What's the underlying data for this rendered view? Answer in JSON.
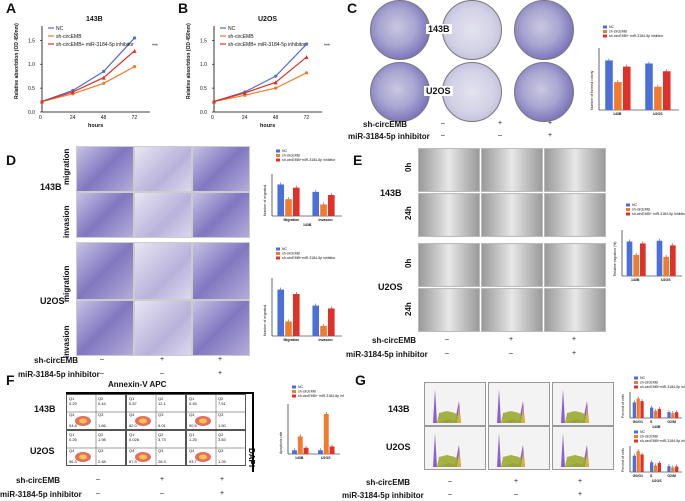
{
  "panel_labels": [
    "A",
    "B",
    "C",
    "D",
    "E",
    "F",
    "G"
  ],
  "chart_data": [
    {
      "type": "line",
      "panel": "A",
      "title": "143B",
      "xlabel": "hours",
      "ylabel": "Relative absorbtion (OD 450nm)",
      "x": [
        0,
        24,
        48,
        72
      ],
      "ylim": [
        0,
        1.8
      ],
      "yticks": [
        0.0,
        0.5,
        1.0,
        1.5
      ],
      "series": [
        {
          "name": "NC",
          "color": "#4a6fd8",
          "values": [
            0.22,
            0.45,
            0.85,
            1.55
          ]
        },
        {
          "name": "sh-circEMB",
          "color": "#f07b2c",
          "values": [
            0.22,
            0.38,
            0.6,
            0.95
          ]
        },
        {
          "name": "sh-circEMB+ miR-3184-5p inhibitor",
          "color": "#e0302a",
          "values": [
            0.22,
            0.42,
            0.72,
            1.28
          ]
        }
      ],
      "annotations": [
        "***",
        "**"
      ]
    },
    {
      "type": "line",
      "panel": "B",
      "title": "U2OS",
      "xlabel": "hours",
      "ylabel": "Relative absorbtion (OD 450nm)",
      "x": [
        0,
        24,
        48,
        72
      ],
      "ylim": [
        0,
        1.8
      ],
      "yticks": [
        0.0,
        0.5,
        1.0,
        1.5
      ],
      "series": [
        {
          "name": "NC",
          "color": "#4a6fd8",
          "values": [
            0.22,
            0.42,
            0.75,
            1.42
          ]
        },
        {
          "name": "sh-circEMB",
          "color": "#f07b2c",
          "values": [
            0.22,
            0.35,
            0.5,
            0.82
          ]
        },
        {
          "name": "sh-circEMB+ miR-3184-5p inhibitor",
          "color": "#e0302a",
          "values": [
            0.22,
            0.4,
            0.62,
            1.15
          ]
        }
      ],
      "annotations": [
        "***",
        "**"
      ]
    },
    {
      "type": "bar",
      "panel": "C",
      "ylabel": "Number of formed colony",
      "categories": [
        "143B",
        "U2OS"
      ],
      "ylim": [
        0,
        400
      ],
      "legend": [
        "NC",
        "sh-circEMB",
        "sh-circEMB+ miR-3184-5p inhibitor"
      ],
      "series": [
        {
          "name": "NC",
          "values": [
            320,
            300
          ]
        },
        {
          "name": "sh-circEMB",
          "values": [
            180,
            150
          ]
        },
        {
          "name": "inhibitor",
          "values": [
            280,
            250
          ]
        }
      ]
    },
    {
      "type": "bar",
      "panel": "D-143B",
      "ylabel": "Number of migrated",
      "categories": [
        "Migration",
        "Invasion"
      ],
      "ylim": [
        0,
        400
      ],
      "legend": [
        "NC",
        "sh-circEMB",
        "sh-circEMB+miR-3184-5p inhibitor"
      ],
      "caption": "143B",
      "series": [
        {
          "name": "NC",
          "values": [
            300,
            230
          ]
        },
        {
          "name": "sh-circEMB",
          "values": [
            160,
            110
          ]
        },
        {
          "name": "inhibitor",
          "values": [
            270,
            200
          ]
        }
      ]
    },
    {
      "type": "bar",
      "panel": "D-U2OS",
      "ylabel": "Number of migrated",
      "categories": [
        "Migration",
        "Invasion"
      ],
      "ylim": [
        0,
        400
      ],
      "legend": [
        "NC",
        "sh-circEMB",
        "sh-circEMB+miR-3184-5p inhibitor"
      ],
      "series": [
        {
          "name": "NC",
          "values": [
            320,
            210
          ]
        },
        {
          "name": "sh-circEMB",
          "values": [
            100,
            70
          ]
        },
        {
          "name": "inhibitor",
          "values": [
            290,
            190
          ]
        }
      ]
    },
    {
      "type": "bar",
      "panel": "E",
      "ylabel": "Relative migration (%)",
      "categories": [
        "143B",
        "U2OS"
      ],
      "ylim": [
        0,
        1.2
      ],
      "legend": [
        "NC",
        "sh-circEMB",
        "sh-circEMB+ miR-3184-5p inhibitor"
      ],
      "series": [
        {
          "name": "NC",
          "values": [
            0.9,
            0.92
          ]
        },
        {
          "name": "sh-circEMB",
          "values": [
            0.55,
            0.5
          ]
        },
        {
          "name": "inhibitor",
          "values": [
            0.85,
            0.8
          ]
        }
      ]
    },
    {
      "type": "bar",
      "panel": "F",
      "ylabel": "Apoptosis rate",
      "categories": [
        "143B",
        "U2OS"
      ],
      "ylim": [
        0,
        40
      ],
      "legend": [
        "NC",
        "sh-circEMB",
        "sh-circEMB+ miR-3184-5p inhibitor"
      ],
      "series": [
        {
          "name": "NC",
          "values": [
            3,
            3
          ]
        },
        {
          "name": "sh-circEMB",
          "values": [
            14,
            32
          ]
        },
        {
          "name": "inhibitor",
          "values": [
            5,
            6
          ]
        }
      ]
    },
    {
      "type": "bar",
      "panel": "G-143B",
      "ylabel": "Percent of cells",
      "categories": [
        "G0/G1",
        "S",
        "G2/M"
      ],
      "ylim": [
        0,
        80
      ],
      "caption": "143B",
      "legend": [
        "NC",
        "sh-circEMB",
        "sh-circEMB+miR-3184-5p inhibitor"
      ],
      "series": [
        {
          "name": "NC",
          "values": [
            48,
            32,
            18
          ]
        },
        {
          "name": "sh-circEMB",
          "values": [
            60,
            22,
            15
          ]
        },
        {
          "name": "inhibitor",
          "values": [
            52,
            28,
            18
          ]
        }
      ]
    },
    {
      "type": "bar",
      "panel": "G-U2OS",
      "ylabel": "Percent of cells",
      "categories": [
        "G0/G1",
        "S",
        "G2/M"
      ],
      "ylim": [
        0,
        80
      ],
      "caption": "U2OS",
      "legend": [
        "NC",
        "sh-circEMB",
        "sh-circEMB+miR-3184-5p inhibitor"
      ],
      "series": [
        {
          "name": "NC",
          "values": [
            50,
            30,
            18
          ]
        },
        {
          "name": "sh-circEMB",
          "values": [
            64,
            20,
            14
          ]
        },
        {
          "name": "inhibitor",
          "values": [
            54,
            28,
            17
          ]
        }
      ]
    }
  ],
  "colors": {
    "NC": "#4a6fd8",
    "sh": "#f07b2c",
    "inh": "#e0302a"
  },
  "treatment": {
    "row1": "sh-circEMB",
    "row2": "miR-3184-5p inhibitor",
    "row1_signs": [
      "–",
      "+",
      "+"
    ],
    "row2_signs": [
      "–",
      "–",
      "+"
    ]
  },
  "cells": {
    "a": "143B",
    "b": "U2OS"
  },
  "D": {
    "migration": "migration",
    "invasion": "invasion"
  },
  "E": {
    "t0": "0h",
    "t24": "24h"
  },
  "F": {
    "xaxis": "Annexin-V APC",
    "yaxis": "DAPI",
    "quads": [
      [
        "Q1",
        "0.29",
        "Q2",
        "0.44",
        "Q4",
        "94.8",
        "Q3",
        "1.66"
      ],
      [
        "Q1",
        "0.87",
        "Q2",
        "12.1",
        "Q4",
        "82.0",
        "Q3",
        "5.01"
      ],
      [
        "Q1",
        "0.45",
        "Q2",
        "7.51",
        "Q4",
        "90.5",
        "Q3",
        "1.50"
      ],
      [
        "Q1",
        "0.26",
        "Q2",
        "1.98",
        "Q4",
        "96.3",
        "Q3",
        "2.48"
      ],
      [
        "Q1",
        "0.028",
        "Q2",
        "3.73",
        "Q4",
        "67.9",
        "Q3",
        "28.3"
      ],
      [
        "Q1",
        "1.25",
        "Q2",
        "3.83",
        "Q4",
        "93.7",
        "Q3",
        "1.25"
      ]
    ]
  }
}
